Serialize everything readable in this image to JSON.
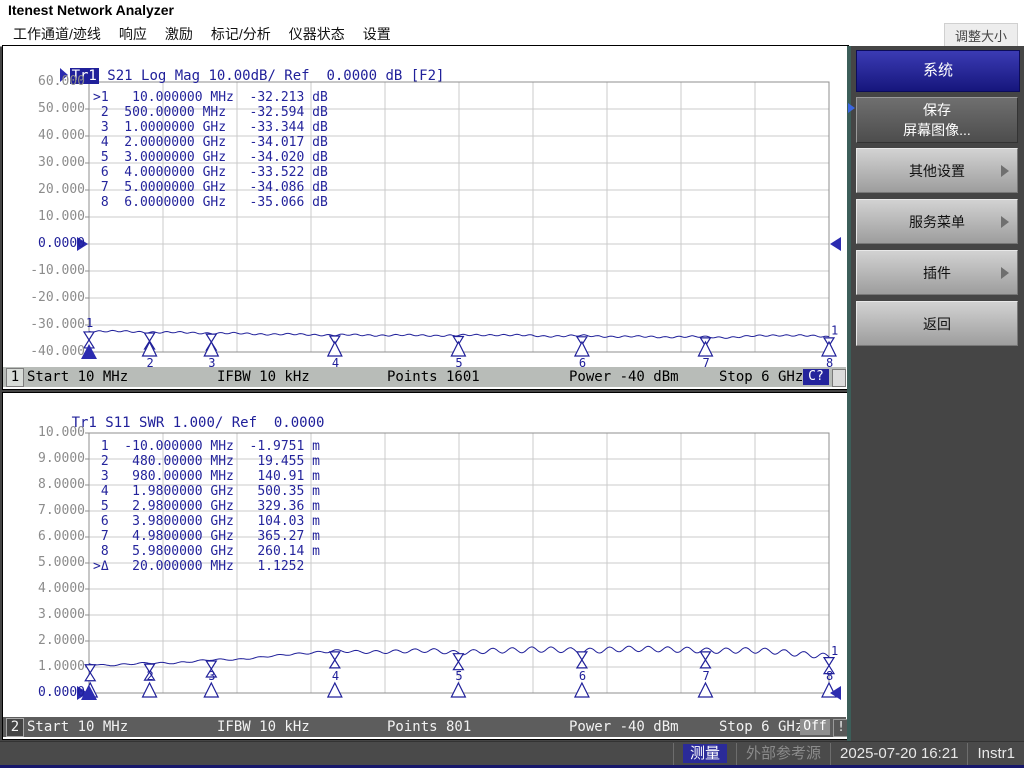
{
  "title_bar": {
    "title": "Itenest Network Analyzer"
  },
  "menu_bar": {
    "items": [
      "工作通道/迹线",
      "响应",
      "激励",
      "标记/分析",
      "仪器状态",
      "设置"
    ],
    "resize_button": "调整大小"
  },
  "channel1": {
    "trace_badge": "Tr1",
    "trace_header": " S21 Log Mag 10.00dB/ Ref  0.0000 dB [F2]",
    "y_axis_labels": [
      "60.000",
      "50.000",
      "40.000",
      "30.000",
      "20.000",
      "10.000",
      "0.0000",
      "-10.000",
      "-20.000",
      "-30.000",
      "-40.000"
    ],
    "ref_label_index": 6,
    "marker_table": [
      ">1   10.000000 MHz  -32.213 dB",
      " 2  500.00000 MHz   -32.594 dB",
      " 3  1.0000000 GHz   -33.344 dB",
      " 4  2.0000000 GHz   -34.017 dB",
      " 5  3.0000000 GHz   -34.020 dB",
      " 6  4.0000000 GHz   -33.522 dB",
      " 7  5.0000000 GHz   -34.086 dB",
      " 8  6.0000000 GHz   -35.066 dB"
    ],
    "status": {
      "channel": "1",
      "start": "Start 10 MHz",
      "ifbw": "IFBW 10 kHz",
      "points": "Points 1601",
      "power": "Power -40 dBm",
      "stop": "Stop 6 GHz",
      "correction_badge": "C?"
    }
  },
  "channel2": {
    "trace_badge": "Tr1",
    "trace_header": " S11 SWR 1.000/ Ref  0.0000",
    "y_axis_labels": [
      "10.000",
      "9.0000",
      "8.0000",
      "7.0000",
      "6.0000",
      "5.0000",
      "4.0000",
      "3.0000",
      "2.0000",
      "1.0000",
      "0.0000"
    ],
    "ref_label_index": 10,
    "marker_table": [
      " 1  -10.000000 MHz  -1.9751 m",
      " 2   480.00000 MHz   19.455 m",
      " 3   980.00000 MHz   140.91 m",
      " 4   1.9800000 GHz   500.35 m",
      " 5   2.9800000 GHz   329.36 m",
      " 6   3.9800000 GHz   104.03 m",
      " 7   4.9800000 GHz   365.27 m",
      " 8   5.9800000 GHz   260.14 m",
      ">Δ   20.000000 MHz   1.1252"
    ],
    "status": {
      "channel": "2",
      "start": "Start 10 MHz",
      "ifbw": "IFBW 10 kHz",
      "points": "Points 801",
      "power": "Power -40 dBm",
      "stop": "Stop 6 GHz",
      "correction_badge": "Off",
      "warning_badge": "!"
    }
  },
  "sidebar": {
    "title": "系统",
    "buttons": [
      {
        "label": "保存",
        "label2": "屏幕图像...",
        "variant": "dark"
      },
      {
        "label": "其他设置",
        "arrow": true
      },
      {
        "label": "服务菜单",
        "arrow": true
      },
      {
        "label": "插件",
        "arrow": true
      },
      {
        "label": "返回"
      }
    ]
  },
  "taskbar": {
    "measure": "测量",
    "ext_ref": "外部参考源",
    "datetime": "2025-07-20 16:21",
    "instrument": "Instr1"
  },
  "chart_data": [
    {
      "type": "line",
      "name": "Tr1 S21 Log Mag",
      "x_unit": "GHz",
      "y_unit": "dB",
      "x_range_ghz": [
        0.01,
        6.0
      ],
      "y_range": [
        -40,
        60
      ],
      "scale_per_div": 10.0,
      "ref_value": 0.0,
      "grid": "on",
      "trace_end_label": "1",
      "markers": [
        {
          "id": "1",
          "x_ghz": 0.01,
          "value": -32.213,
          "no_axis_tri": true,
          "num_above_trace": true
        },
        {
          "id": "2",
          "x_ghz": 0.5,
          "value": -32.594
        },
        {
          "id": "3",
          "x_ghz": 1.0,
          "value": -33.344
        },
        {
          "id": "4",
          "x_ghz": 2.0,
          "value": -34.017
        },
        {
          "id": "5",
          "x_ghz": 3.0,
          "value": -34.02
        },
        {
          "id": "6",
          "x_ghz": 4.0,
          "value": -33.522
        },
        {
          "id": "7",
          "x_ghz": 5.0,
          "value": -34.086
        },
        {
          "id": "8",
          "x_ghz": 6.0,
          "value": -35.066
        }
      ],
      "anchors": [
        [
          0.01,
          -32.2
        ],
        [
          0.3,
          -32.45
        ],
        [
          0.6,
          -32.7
        ],
        [
          1.0,
          -33.0
        ],
        [
          1.5,
          -33.4
        ],
        [
          2.0,
          -33.7
        ],
        [
          2.5,
          -33.8
        ],
        [
          3.0,
          -33.9
        ],
        [
          3.3,
          -33.6
        ],
        [
          3.7,
          -34.1
        ],
        [
          4.0,
          -34.0
        ],
        [
          4.3,
          -34.3
        ],
        [
          4.7,
          -34.4
        ],
        [
          5.0,
          -34.4
        ],
        [
          5.2,
          -34.6
        ],
        [
          5.45,
          -34.0
        ],
        [
          5.6,
          -33.7
        ],
        [
          5.75,
          -33.9
        ],
        [
          5.9,
          -34.2
        ],
        [
          6.0,
          -34.4
        ]
      ]
    },
    {
      "type": "line",
      "name": "Tr1 S11 SWR",
      "x_unit": "GHz",
      "y_unit": "SWR",
      "x_range_ghz": [
        0.01,
        6.0
      ],
      "y_range": [
        0,
        10
      ],
      "scale_per_div": 1.0,
      "ref_value": 0.0,
      "grid": "on",
      "trace_end_label": "1",
      "markers": [
        {
          "id": "1",
          "x_ghz": 0.01,
          "value_delta_m": -1.9751,
          "draw": false
        },
        {
          "id": "2",
          "x_ghz": 0.5,
          "value_delta_m": 19.455
        },
        {
          "id": "3",
          "x_ghz": 1.0,
          "value_delta_m": 140.91
        },
        {
          "id": "4",
          "x_ghz": 2.0,
          "value_delta_m": 500.35
        },
        {
          "id": "5",
          "x_ghz": 3.0,
          "value_delta_m": 329.36
        },
        {
          "id": "6",
          "x_ghz": 4.0,
          "value_delta_m": 104.03
        },
        {
          "id": "7",
          "x_ghz": 5.0,
          "value_delta_m": 365.27
        },
        {
          "id": "8",
          "x_ghz": 6.0,
          "value_delta_m": 260.14
        },
        {
          "id": "Δ",
          "x_ghz": 0.02,
          "value": 1.1252,
          "no_num": true
        }
      ],
      "anchors": [
        [
          0.01,
          1.13
        ],
        [
          0.15,
          1.07
        ],
        [
          0.35,
          1.11
        ],
        [
          0.5,
          1.15
        ],
        [
          0.7,
          1.16
        ],
        [
          1.0,
          1.27
        ],
        [
          1.2,
          1.29
        ],
        [
          1.5,
          1.42
        ],
        [
          1.8,
          1.55
        ],
        [
          2.0,
          1.62
        ],
        [
          2.2,
          1.57
        ],
        [
          2.5,
          1.6
        ],
        [
          2.8,
          1.63
        ],
        [
          3.0,
          1.55
        ],
        [
          3.3,
          1.62
        ],
        [
          3.6,
          1.68
        ],
        [
          4.0,
          1.62
        ],
        [
          4.3,
          1.68
        ],
        [
          4.6,
          1.7
        ],
        [
          5.0,
          1.62
        ],
        [
          5.3,
          1.65
        ],
        [
          5.6,
          1.58
        ],
        [
          5.8,
          1.5
        ],
        [
          6.0,
          1.4
        ]
      ]
    }
  ]
}
